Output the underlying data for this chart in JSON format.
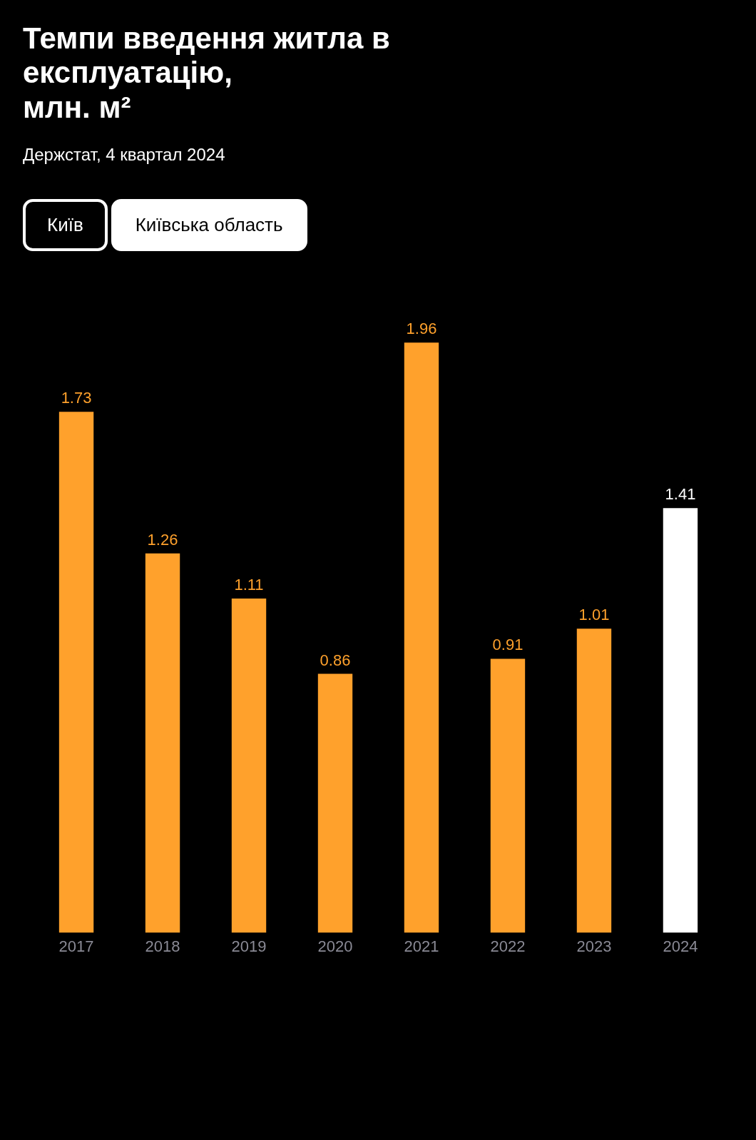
{
  "chart_data": {
    "type": "bar",
    "title": "Темпи введення житла в\nексплуатацію,\nмлн. м²",
    "subtitle": "Держстат, 4 квартал 2024",
    "annotations": [
      "Київ",
      "Київська область"
    ],
    "categories": [
      "2017",
      "2018",
      "2019",
      "2020",
      "2021",
      "2022",
      "2023",
      "2024"
    ],
    "values": [
      1.73,
      1.26,
      1.11,
      0.86,
      1.96,
      0.91,
      1.01,
      1.41
    ],
    "colors": [
      "#ffa12c",
      "#ffa12c",
      "#ffa12c",
      "#ffa12c",
      "#ffa12c",
      "#ffa12c",
      "#ffa12c",
      "#ffffff"
    ],
    "data_labels": true,
    "grid": false
  }
}
